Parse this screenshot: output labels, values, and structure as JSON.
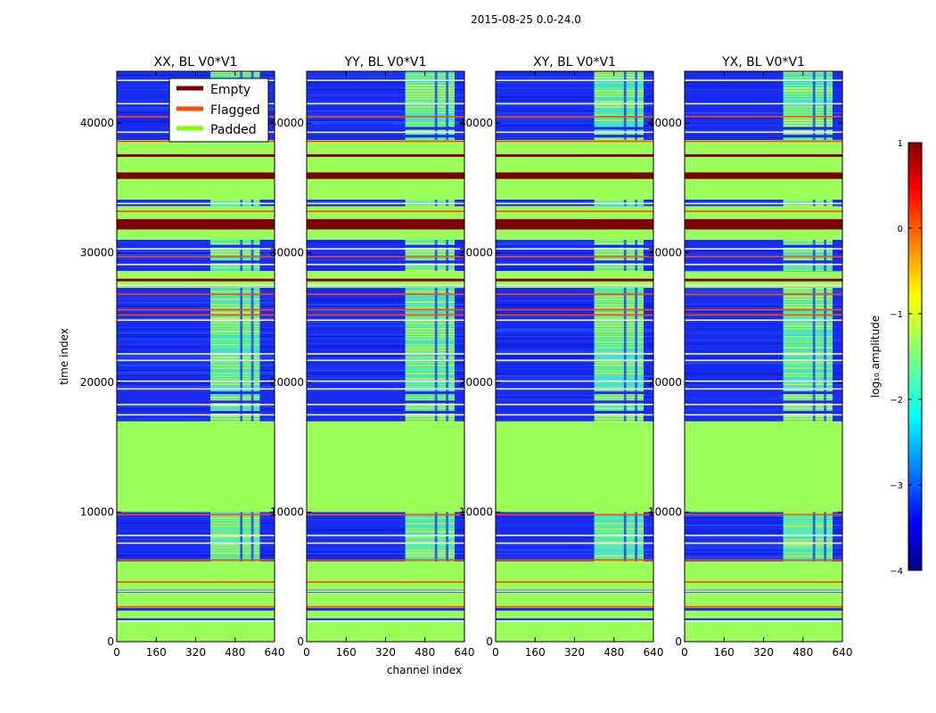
{
  "suptitle": "2015-08-25 0.0-24.0",
  "xlabel": "channel index",
  "ylabel": "time index",
  "colors": {
    "padded": "#99ff58",
    "empty": "#7f0000",
    "flagged": "#ff4a00",
    "noise": "#1a2cf0",
    "rfi": "#5cff9c",
    "white_line": "#f4f4f4"
  },
  "legend": {
    "location": "upper-right of first panel",
    "items": [
      {
        "label": "Empty",
        "color": "#7f0000"
      },
      {
        "label": "Flagged",
        "color": "#ff4a00"
      },
      {
        "label": "Padded",
        "color": "#7cfc00"
      }
    ]
  },
  "colorbar": {
    "label": "log₁₀ amplitude",
    "min": -4,
    "max": 1,
    "ticks": [
      "1",
      "0",
      "−1",
      "−2",
      "−3",
      "−4"
    ],
    "tick_values": [
      1,
      0,
      -1,
      -2,
      -3,
      -4
    ]
  },
  "chart_data": {
    "type": "heatmap",
    "xlim": [
      0,
      640
    ],
    "ylim": [
      0,
      44000
    ],
    "xticks": [
      0,
      160,
      320,
      480,
      640
    ],
    "yticks": [
      0,
      10000,
      20000,
      30000,
      40000
    ],
    "panels": [
      {
        "title": "XX, BL V0*V1",
        "rfi_band": [
          380,
          580
        ]
      },
      {
        "title": "YY, BL V0*V1",
        "rfi_band": [
          400,
          600
        ]
      },
      {
        "title": "XY, BL V0*V1",
        "rfi_band": [
          400,
          600
        ]
      },
      {
        "title": "YX, BL V0*V1",
        "rfi_band": [
          400,
          600
        ]
      }
    ],
    "rfi_channel_gaps": [
      [
        500,
        510
      ],
      [
        545,
        555
      ]
    ],
    "time_segments": [
      {
        "start": 0,
        "end": 6200,
        "state": "padded"
      },
      {
        "start": 6200,
        "end": 10000,
        "state": "data"
      },
      {
        "start": 10000,
        "end": 17000,
        "state": "padded"
      },
      {
        "start": 17000,
        "end": 22200,
        "state": "data"
      },
      {
        "start": 22200,
        "end": 27300,
        "state": "data"
      },
      {
        "start": 27300,
        "end": 28600,
        "state": "padded"
      },
      {
        "start": 28600,
        "end": 31000,
        "state": "data"
      },
      {
        "start": 31000,
        "end": 33600,
        "state": "padded"
      },
      {
        "start": 33600,
        "end": 34100,
        "state": "data"
      },
      {
        "start": 34100,
        "end": 38700,
        "state": "padded"
      },
      {
        "start": 38700,
        "end": 44000,
        "state": "data"
      }
    ],
    "empty_bands": [
      {
        "start": 31800,
        "end": 32600
      },
      {
        "start": 35700,
        "end": 36200
      },
      {
        "start": 37400,
        "end": 37600
      },
      {
        "start": 27800,
        "end": 28000
      }
    ],
    "flagged_lines": [
      2700,
      4600,
      6300,
      9800,
      25200,
      25600,
      26800,
      29700,
      33200,
      38600,
      40500
    ],
    "white_lines": [
      1600,
      3900,
      7600,
      8200,
      17500,
      18300,
      19500,
      20100,
      21700,
      22200,
      24800,
      27500,
      29100,
      30300,
      33800,
      39300,
      41500,
      43300
    ],
    "data_stripes": [
      1700,
      2500,
      3900,
      17700,
      18500,
      19200,
      29300,
      30500,
      39000,
      39600
    ]
  }
}
